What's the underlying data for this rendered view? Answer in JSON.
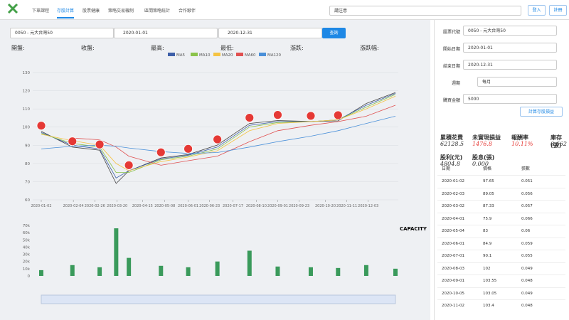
{
  "nav": {
    "tabs": [
      "下單課程",
      "存股計算",
      "股票健康",
      "策略交易機制",
      "區間策略統計",
      "合作夥伴"
    ],
    "search": "請注意",
    "login": "登入",
    "register": "註冊"
  },
  "query": {
    "stock": "0050 - 元大台灣50",
    "start": "2020-01-01",
    "end": "2020-12-31",
    "button": "查詢"
  },
  "quote": [
    "開盤:",
    "收盤:",
    "最高:",
    "最低:",
    "漲跌:",
    "漲跌幅:"
  ],
  "form": {
    "fields": [
      {
        "label": "股票代號",
        "value": "0050 - 元大台灣50"
      },
      {
        "label": "開始日期",
        "value": "2020-01-01"
      },
      {
        "label": "結束日期",
        "value": "2020-12-31"
      },
      {
        "label": "週期",
        "value": "每月"
      },
      {
        "label": "購買金額",
        "value": "5000"
      }
    ],
    "button": "計算存股損益"
  },
  "stats": [
    {
      "label": "累積花費",
      "value": "62128.5"
    },
    {
      "label": "未實現損益",
      "value": "1476.8"
    },
    {
      "label": "報酬率",
      "value": "10.11%"
    },
    {
      "label": "庫存(張)",
      "value": "0.662"
    },
    {
      "label": "股利(元)",
      "value": "4804.8"
    },
    {
      "label": "股息(張)",
      "value": "0.000"
    }
  ],
  "table": {
    "headers": [
      "日期",
      "價格",
      "張數"
    ],
    "rows": [
      [
        "2020-01-02",
        97.65,
        0.051
      ],
      [
        "2020-02-03",
        89.05,
        0.056
      ],
      [
        "2020-03-02",
        87.33,
        0.057
      ],
      [
        "2020-04-01",
        75.9,
        0.066
      ],
      [
        "2020-05-04",
        83,
        0.06
      ],
      [
        "2020-06-01",
        84.9,
        0.059
      ],
      [
        "2020-07-01",
        90.1,
        0.055
      ],
      [
        "2020-08-03",
        102,
        0.049
      ],
      [
        "2020-09-01",
        103.55,
        0.048
      ],
      [
        "2020-10-05",
        103.05,
        0.049
      ],
      [
        "2020-11-02",
        103.4,
        0.048
      ]
    ]
  },
  "chart_data": [
    {
      "type": "line",
      "x": [
        "2020-01-02",
        "2020-02-03",
        "2020-03-02",
        "2020-03-19",
        "2020-04-01",
        "2020-05-04",
        "2020-06-01",
        "2020-07-01",
        "2020-08-03",
        "2020-09-01",
        "2020-10-05",
        "2020-11-02",
        "2020-12-01",
        "2020-12-31"
      ],
      "values": [
        97.7,
        89,
        87.3,
        69,
        75.9,
        83,
        84.9,
        90.1,
        102,
        103.6,
        103.1,
        103.4,
        113,
        119
      ],
      "color": "#444444",
      "series": [
        {
          "name": "MA5",
          "color": "#3d5fa8",
          "values": [
            97,
            90,
            88,
            72,
            76,
            82.5,
            84.5,
            89,
            101,
            103,
            103,
            104,
            112,
            118.5
          ]
        },
        {
          "name": "MA10",
          "color": "#8bc34a",
          "values": [
            96.5,
            91,
            89,
            75,
            75,
            82,
            84,
            88,
            100,
            102.5,
            103,
            104,
            111,
            118
          ]
        },
        {
          "name": "MA20",
          "color": "#f5c342",
          "values": [
            96,
            92.5,
            90,
            80,
            76,
            81,
            83.5,
            87,
            98,
            102,
            103,
            104,
            110,
            117
          ]
        },
        {
          "name": "MA60",
          "color": "#e05050",
          "values": [
            null,
            94,
            93,
            89,
            84,
            79,
            81.5,
            84,
            92,
            98,
            101,
            103,
            106,
            112
          ]
        },
        {
          "name": "MA120",
          "color": "#4a90d9",
          "values": [
            88,
            89.5,
            90,
            89.5,
            88.5,
            86.5,
            85.5,
            86,
            89,
            92,
            95,
            98,
            102,
            106
          ]
        }
      ],
      "xlim": [
        "2020-01-02",
        "2020-12-31"
      ],
      "xticks": [
        "2020-01-02",
        "2020-02-04",
        "2020-02-26",
        "2020-03-20",
        "2020-04-15",
        "2020-05-08",
        "2020-06-01",
        "2020-06-23",
        "2020-07-17",
        "2020-08-10",
        "2020-09-01",
        "2020-09-23",
        "2020-10-20",
        "2020-11-11",
        "2020-12-03"
      ],
      "ylim": [
        60,
        130
      ],
      "yticks": [
        60,
        70,
        80,
        90,
        100,
        110,
        120,
        130
      ],
      "grid": true,
      "legend": "top"
    },
    {
      "type": "bar",
      "title": "CAPACITY",
      "x": [
        "2020-01-02",
        "2020-02-03",
        "2020-03-02",
        "2020-03-19",
        "2020-04-01",
        "2020-05-04",
        "2020-06-01",
        "2020-07-01",
        "2020-08-03",
        "2020-09-01",
        "2020-10-05",
        "2020-11-02",
        "2020-12-01",
        "2020-12-31"
      ],
      "values": [
        8000,
        15000,
        12000,
        66000,
        25000,
        14000,
        12000,
        20000,
        35000,
        13000,
        12000,
        11000,
        15000,
        10000
      ],
      "color": "#3a9a5b",
      "xlim": [
        "2020-01-02",
        "2020-12-31"
      ],
      "ylim": [
        0,
        70000
      ],
      "yticks": [
        0,
        {
          "value": 10000,
          "label": "10k"
        },
        {
          "value": 20000,
          "label": "20k"
        },
        {
          "value": 30000,
          "label": "30k"
        },
        {
          "value": 40000,
          "label": "40k"
        },
        {
          "value": 50000,
          "label": "50k"
        },
        {
          "value": 60000,
          "label": "60k"
        },
        {
          "value": 70000,
          "label": "70k"
        }
      ]
    }
  ]
}
